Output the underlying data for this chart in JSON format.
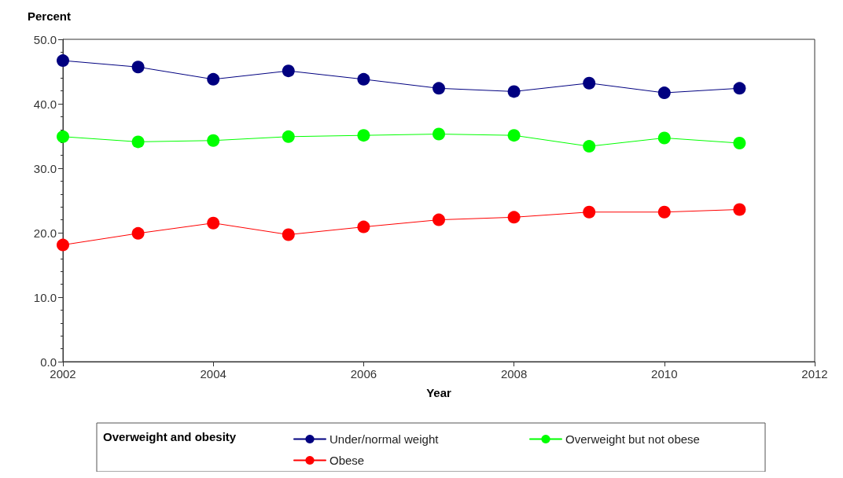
{
  "chart_data": {
    "type": "line",
    "xlabel": "Year",
    "ylabel": "Percent",
    "legend_title": "Overweight and obesity",
    "x": [
      2002,
      2003,
      2004,
      2005,
      2006,
      2007,
      2008,
      2009,
      2010,
      2011
    ],
    "series": [
      {
        "name": "Under/normal weight",
        "color": "#000080",
        "values": [
          46.7,
          45.7,
          43.8,
          45.1,
          43.8,
          42.4,
          41.9,
          43.2,
          41.7,
          42.4
        ]
      },
      {
        "name": "Obese",
        "color": "#ff0000",
        "values": [
          18.1,
          19.9,
          21.5,
          19.7,
          20.9,
          22.0,
          22.4,
          23.2,
          23.2,
          23.6
        ]
      },
      {
        "name": "Overweight but not obese",
        "color": "#00ff00",
        "values": [
          34.9,
          34.1,
          34.3,
          34.9,
          35.1,
          35.3,
          35.1,
          33.4,
          34.7,
          33.9
        ]
      }
    ],
    "xlim": [
      2002,
      2012
    ],
    "xticks": [
      2002,
      2004,
      2006,
      2008,
      2010,
      2012
    ],
    "ylim": [
      0,
      50
    ],
    "yticks": [
      {
        "value": 0,
        "label": "0.0"
      },
      {
        "value": 10,
        "label": "10.0"
      },
      {
        "value": 20,
        "label": "20.0"
      },
      {
        "value": 30,
        "label": "30.0"
      },
      {
        "value": 40,
        "label": "40.0"
      },
      {
        "value": 50,
        "label": "50.0"
      }
    ],
    "grid": false,
    "legend": "bottom",
    "marker": "circle",
    "line_style": "solid"
  }
}
